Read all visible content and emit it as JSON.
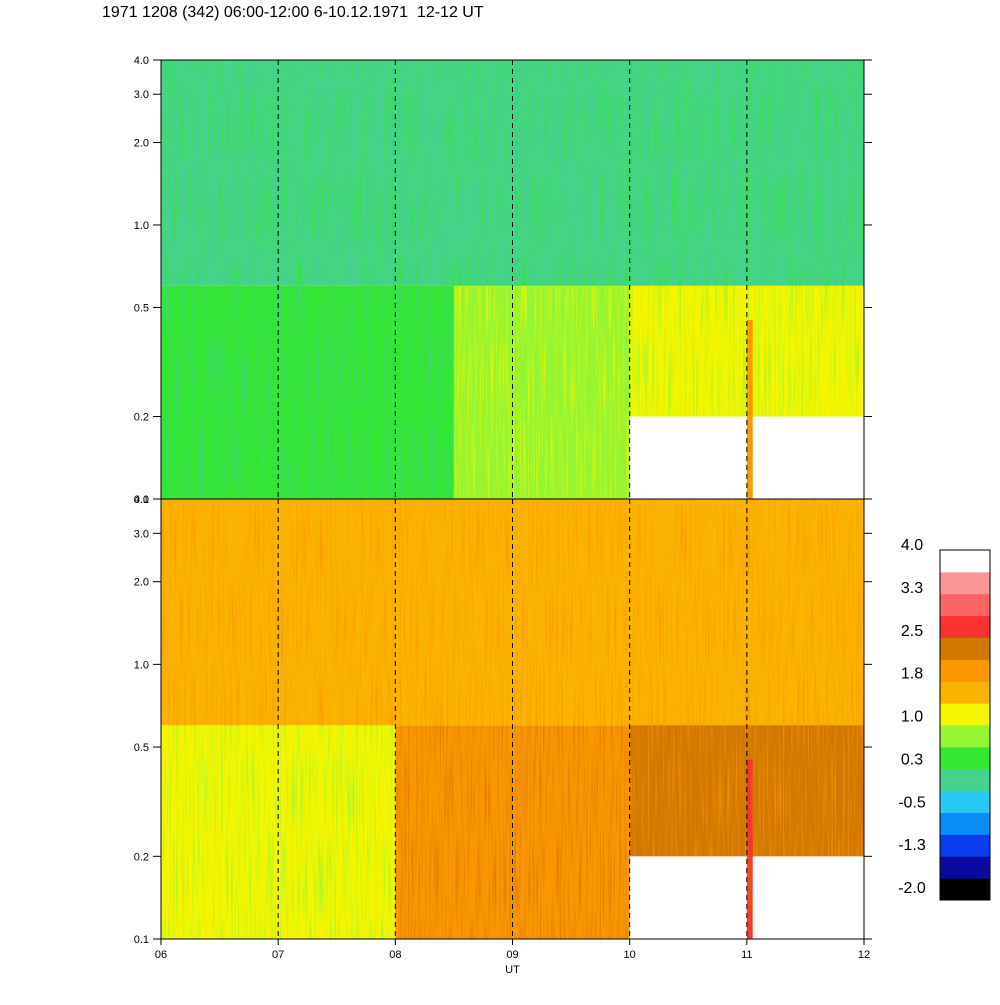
{
  "title": "1971 1208 (342) 06:00-12:00 6-10.12.1971  12-12 UT",
  "chart_data": [
    {
      "type": "heatmap",
      "panel": "top",
      "x_ticks": [
        "06",
        "07",
        "08",
        "09",
        "10",
        "11",
        "12"
      ],
      "xlim": [
        6,
        12
      ],
      "y_ticks": [
        "0.1",
        "0.2",
        "0.5",
        "1.0",
        "2.0",
        "3.0",
        "4.0"
      ],
      "y_scale": "log",
      "ylim": [
        0.1,
        4.0
      ],
      "dashed_vertical_lines_at": [
        7,
        8,
        9,
        10,
        11
      ],
      "dominant_levels": [
        {
          "x_range": [
            6.0,
            8.5
          ],
          "y_range": [
            0.1,
            0.6
          ],
          "level": 0.3
        },
        {
          "x_range": [
            8.5,
            10.0
          ],
          "y_range": [
            0.1,
            0.6
          ],
          "level": 0.7
        },
        {
          "x_range": [
            10.0,
            12.0
          ],
          "y_range": [
            0.2,
            0.6
          ],
          "level": 1.3
        },
        {
          "x_range": [
            6.0,
            12.0
          ],
          "y_range": [
            0.6,
            4.0
          ],
          "level": 0.0
        },
        {
          "x_range": [
            11.0,
            11.05
          ],
          "y_range": [
            0.1,
            0.45
          ],
          "level": 2.0
        }
      ]
    },
    {
      "type": "heatmap",
      "panel": "bottom",
      "x_ticks": [
        "06",
        "07",
        "08",
        "09",
        "10",
        "11",
        "12"
      ],
      "xlim": [
        6,
        12
      ],
      "xlabel": "UT",
      "y_ticks": [
        "0.1",
        "0.2",
        "0.5",
        "1.0",
        "2.0",
        "3.0",
        "4.0"
      ],
      "y_scale": "log",
      "ylim": [
        0.1,
        4.0
      ],
      "dashed_vertical_lines_at": [
        7,
        8,
        9,
        10,
        11
      ],
      "dominant_levels": [
        {
          "x_range": [
            6.0,
            8.0
          ],
          "y_range": [
            0.1,
            0.6
          ],
          "level": 1.2
        },
        {
          "x_range": [
            8.0,
            10.0
          ],
          "y_range": [
            0.1,
            0.6
          ],
          "level": 1.8
        },
        {
          "x_range": [
            10.0,
            12.0
          ],
          "y_range": [
            0.2,
            0.7
          ],
          "level": 2.3
        },
        {
          "x_range": [
            6.0,
            12.0
          ],
          "y_range": [
            0.6,
            4.0
          ],
          "level": 1.4
        },
        {
          "x_range": [
            11.0,
            11.05
          ],
          "y_range": [
            0.1,
            0.45
          ],
          "level": 2.8
        }
      ]
    }
  ],
  "colorbar": {
    "labels": [
      "4.0",
      "3.3",
      "2.5",
      "1.8",
      "1.0",
      "0.3",
      "-0.5",
      "-1.3",
      "-2.0"
    ],
    "min": -2.0,
    "max": 4.0,
    "colors": [
      "#000000",
      "#0a0aa0",
      "#0a3cf0",
      "#0a8cf5",
      "#28c8f5",
      "#46d28c",
      "#32e632",
      "#96f532",
      "#f5f500",
      "#fab400",
      "#fa9600",
      "#d27800",
      "#fa3232",
      "#fa6464",
      "#fa9696",
      "#ffffff"
    ]
  }
}
